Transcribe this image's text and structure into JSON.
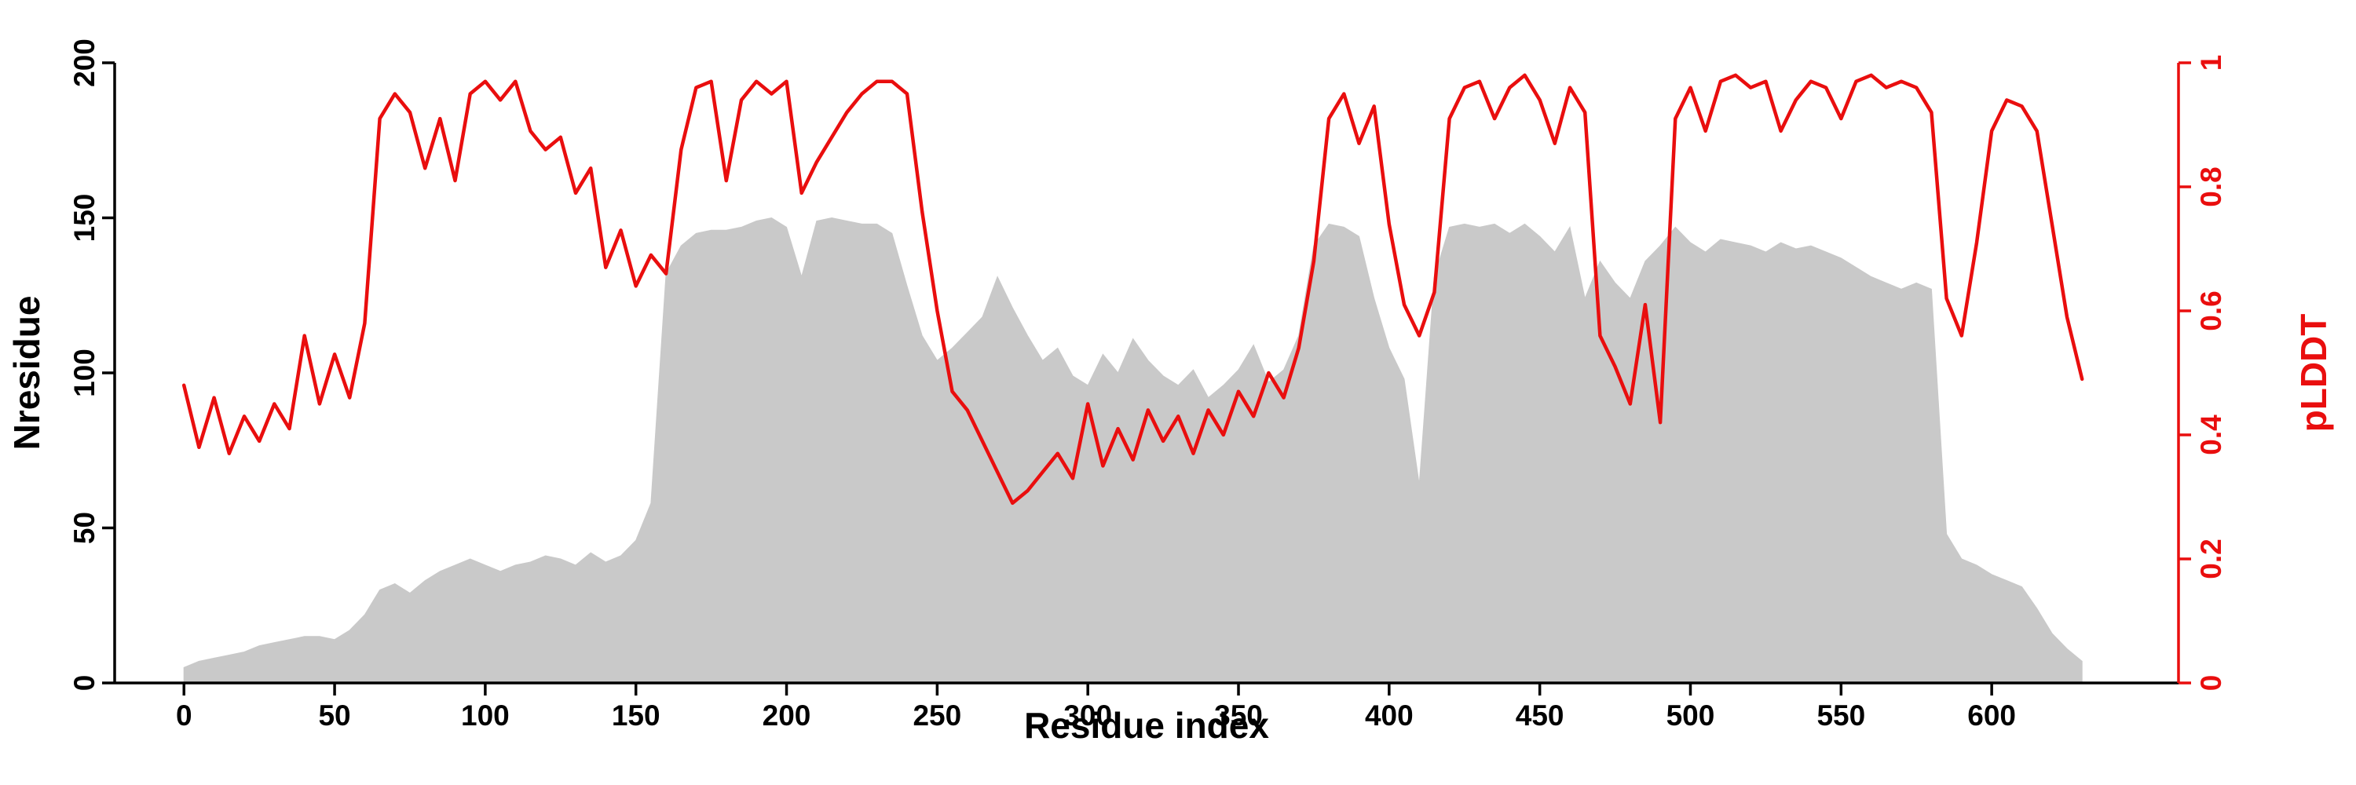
{
  "chart_data": {
    "type": "line",
    "title": "",
    "xlabel": "Residue index",
    "ylabel_left": "Nresidue",
    "ylabel_right": "pLDDT",
    "xlim": [
      -23,
      662
    ],
    "ylim_left": [
      0,
      200
    ],
    "ylim_right": [
      0,
      1
    ],
    "x_ticks": [
      0,
      50,
      100,
      150,
      200,
      250,
      300,
      350,
      400,
      450,
      500,
      550,
      600
    ],
    "y_left_ticks": [
      0,
      50,
      100,
      150,
      200
    ],
    "y_right_ticks": [
      0,
      0.2,
      0.4,
      0.6,
      0.8,
      1
    ],
    "grid": false,
    "legend": "none",
    "colors": {
      "line": "#e90e0e",
      "area_fill": "#c9c9c9",
      "axis": "#000000",
      "background": "#ffffff"
    },
    "x": [
      0,
      5,
      10,
      15,
      20,
      25,
      30,
      35,
      40,
      45,
      50,
      55,
      60,
      65,
      70,
      75,
      80,
      85,
      90,
      95,
      100,
      105,
      110,
      115,
      120,
      125,
      130,
      135,
      140,
      145,
      150,
      155,
      160,
      165,
      170,
      175,
      180,
      185,
      190,
      195,
      200,
      205,
      210,
      215,
      220,
      225,
      230,
      235,
      240,
      245,
      250,
      255,
      260,
      265,
      270,
      275,
      280,
      285,
      290,
      295,
      300,
      305,
      310,
      315,
      320,
      325,
      330,
      335,
      340,
      345,
      350,
      355,
      360,
      365,
      370,
      375,
      380,
      385,
      390,
      395,
      400,
      405,
      410,
      415,
      420,
      425,
      430,
      435,
      440,
      445,
      450,
      455,
      460,
      465,
      470,
      475,
      480,
      485,
      490,
      495,
      500,
      505,
      510,
      515,
      520,
      525,
      530,
      535,
      540,
      545,
      550,
      555,
      560,
      565,
      570,
      575,
      580,
      585,
      590,
      595,
      600,
      605,
      610,
      615,
      620,
      625,
      630
    ],
    "series": [
      {
        "name": "Nresidue",
        "type": "area",
        "axis": "left",
        "values": [
          5,
          7,
          8,
          9,
          10,
          12,
          13,
          14,
          15,
          15,
          14,
          17,
          22,
          30,
          32,
          29,
          33,
          36,
          38,
          40,
          38,
          36,
          38,
          39,
          41,
          40,
          38,
          42,
          39,
          41,
          46,
          58,
          132,
          141,
          145,
          146,
          146,
          147,
          149,
          150,
          147,
          131,
          149,
          150,
          149,
          148,
          148,
          145,
          128,
          112,
          104,
          108,
          113,
          118,
          131,
          121,
          112,
          104,
          108,
          99,
          96,
          106,
          100,
          111,
          104,
          99,
          96,
          101,
          92,
          96,
          101,
          109,
          97,
          101,
          112,
          141,
          148,
          147,
          144,
          124,
          108,
          98,
          64,
          131,
          147,
          148,
          147,
          148,
          145,
          148,
          144,
          139,
          147,
          124,
          136,
          129,
          124,
          136,
          141,
          147,
          142,
          139,
          143,
          142,
          141,
          139,
          142,
          140,
          141,
          139,
          137,
          134,
          131,
          129,
          127,
          129,
          127,
          48,
          40,
          38,
          35,
          33,
          31,
          24,
          16,
          11,
          7
        ]
      },
      {
        "name": "pLDDT",
        "type": "line",
        "axis": "right",
        "values": [
          0.48,
          0.38,
          0.46,
          0.37,
          0.43,
          0.39,
          0.45,
          0.41,
          0.56,
          0.45,
          0.53,
          0.46,
          0.58,
          0.91,
          0.95,
          0.92,
          0.83,
          0.91,
          0.81,
          0.95,
          0.97,
          0.94,
          0.97,
          0.89,
          0.86,
          0.88,
          0.79,
          0.83,
          0.67,
          0.73,
          0.64,
          0.69,
          0.66,
          0.86,
          0.96,
          0.97,
          0.81,
          0.94,
          0.97,
          0.95,
          0.97,
          0.79,
          0.84,
          0.88,
          0.92,
          0.95,
          0.97,
          0.97,
          0.95,
          0.76,
          0.6,
          0.47,
          0.44,
          0.39,
          0.34,
          0.29,
          0.31,
          0.34,
          0.37,
          0.33,
          0.45,
          0.35,
          0.41,
          0.36,
          0.44,
          0.39,
          0.43,
          0.37,
          0.44,
          0.4,
          0.47,
          0.43,
          0.5,
          0.46,
          0.54,
          0.68,
          0.91,
          0.95,
          0.87,
          0.93,
          0.74,
          0.61,
          0.56,
          0.63,
          0.91,
          0.96,
          0.97,
          0.91,
          0.96,
          0.98,
          0.94,
          0.87,
          0.96,
          0.92,
          0.56,
          0.51,
          0.45,
          0.61,
          0.42,
          0.91,
          0.96,
          0.89,
          0.97,
          0.98,
          0.96,
          0.97,
          0.89,
          0.94,
          0.97,
          0.96,
          0.91,
          0.97,
          0.98,
          0.96,
          0.97,
          0.96,
          0.92,
          0.62,
          0.56,
          0.71,
          0.89,
          0.94,
          0.93,
          0.89,
          0.74,
          0.59,
          0.49
        ]
      }
    ]
  }
}
